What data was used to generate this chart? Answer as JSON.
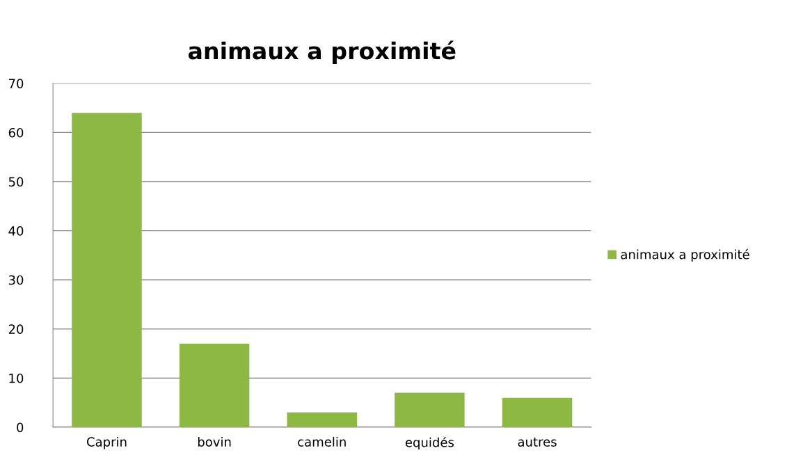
{
  "chart_data": {
    "type": "bar",
    "title": "animaux a proximité",
    "categories": [
      "Caprin",
      "bovin",
      "camelin",
      "equidés",
      "autres"
    ],
    "series": [
      {
        "name": "animaux a proximité",
        "color": "#8db843",
        "values": [
          64,
          17,
          3,
          7,
          6
        ]
      }
    ],
    "ylim": [
      0,
      70
    ],
    "yticks": [
      0,
      10,
      20,
      30,
      40,
      50,
      60,
      70
    ],
    "grid": "y",
    "legend": "right"
  }
}
